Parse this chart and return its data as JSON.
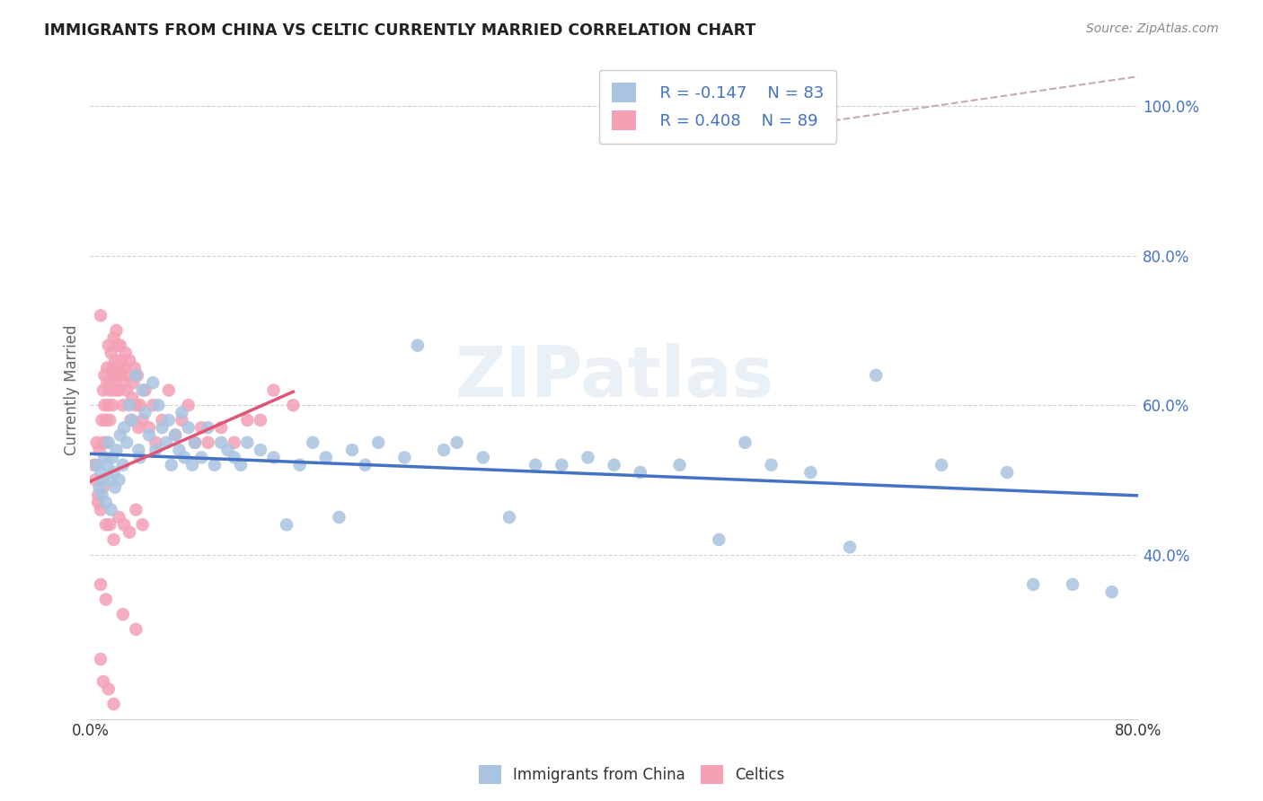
{
  "title": "IMMIGRANTS FROM CHINA VS CELTIC CURRENTLY MARRIED CORRELATION CHART",
  "source": "Source: ZipAtlas.com",
  "ylabel": "Currently Married",
  "legend_label1": "Immigrants from China",
  "legend_label2": "Celtics",
  "legend_r1": "R = -0.147",
  "legend_n1": "N = 83",
  "legend_r2": "R = 0.408",
  "legend_n2": "N = 89",
  "color_china": "#a8c4e0",
  "color_celtic": "#f4a0b5",
  "color_line_china": "#4472c4",
  "color_line_celtic": "#e05575",
  "color_diag": "#c8a8b8",
  "watermark": "ZIPatlas",
  "xlim": [
    0.0,
    0.8
  ],
  "ylim": [
    0.18,
    1.06
  ],
  "yticks": [
    0.4,
    0.6,
    0.8,
    1.0
  ],
  "ytick_labels": [
    "40.0%",
    "60.0%",
    "80.0%",
    "100.0%"
  ],
  "china_line_x": [
    0.0,
    0.8
  ],
  "china_line_y": [
    0.535,
    0.479
  ],
  "celtic_line_x": [
    0.0,
    0.155
  ],
  "celtic_line_y": [
    0.498,
    0.618
  ],
  "diag_line_x": [
    0.485,
    0.8
  ],
  "diag_line_y": [
    0.96,
    1.04
  ],
  "china_x": [
    0.005,
    0.007,
    0.008,
    0.009,
    0.01,
    0.011,
    0.012,
    0.013,
    0.014,
    0.015,
    0.016,
    0.017,
    0.018,
    0.019,
    0.02,
    0.022,
    0.023,
    0.025,
    0.026,
    0.028,
    0.03,
    0.032,
    0.035,
    0.037,
    0.038,
    0.04,
    0.042,
    0.045,
    0.048,
    0.05,
    0.052,
    0.055,
    0.058,
    0.06,
    0.062,
    0.065,
    0.068,
    0.07,
    0.072,
    0.075,
    0.078,
    0.08,
    0.085,
    0.09,
    0.095,
    0.1,
    0.105,
    0.11,
    0.115,
    0.12,
    0.13,
    0.14,
    0.15,
    0.16,
    0.17,
    0.18,
    0.19,
    0.2,
    0.21,
    0.22,
    0.24,
    0.25,
    0.27,
    0.28,
    0.3,
    0.32,
    0.34,
    0.36,
    0.38,
    0.4,
    0.42,
    0.45,
    0.48,
    0.5,
    0.52,
    0.55,
    0.58,
    0.6,
    0.65,
    0.7,
    0.72,
    0.75,
    0.78
  ],
  "china_y": [
    0.52,
    0.49,
    0.51,
    0.48,
    0.5,
    0.53,
    0.47,
    0.52,
    0.55,
    0.5,
    0.46,
    0.53,
    0.51,
    0.49,
    0.54,
    0.5,
    0.56,
    0.52,
    0.57,
    0.55,
    0.6,
    0.58,
    0.64,
    0.54,
    0.53,
    0.62,
    0.59,
    0.56,
    0.63,
    0.54,
    0.6,
    0.57,
    0.55,
    0.58,
    0.52,
    0.56,
    0.54,
    0.59,
    0.53,
    0.57,
    0.52,
    0.55,
    0.53,
    0.57,
    0.52,
    0.55,
    0.54,
    0.53,
    0.52,
    0.55,
    0.54,
    0.53,
    0.44,
    0.52,
    0.55,
    0.53,
    0.45,
    0.54,
    0.52,
    0.55,
    0.53,
    0.68,
    0.54,
    0.55,
    0.53,
    0.45,
    0.52,
    0.52,
    0.53,
    0.52,
    0.51,
    0.52,
    0.42,
    0.55,
    0.52,
    0.51,
    0.41,
    0.64,
    0.52,
    0.51,
    0.36,
    0.36,
    0.35
  ],
  "celtic_x": [
    0.003,
    0.004,
    0.005,
    0.006,
    0.007,
    0.008,
    0.009,
    0.01,
    0.01,
    0.011,
    0.011,
    0.012,
    0.012,
    0.013,
    0.013,
    0.014,
    0.014,
    0.015,
    0.015,
    0.016,
    0.016,
    0.017,
    0.017,
    0.018,
    0.018,
    0.019,
    0.019,
    0.02,
    0.02,
    0.021,
    0.021,
    0.022,
    0.022,
    0.023,
    0.023,
    0.024,
    0.025,
    0.025,
    0.026,
    0.027,
    0.028,
    0.029,
    0.03,
    0.031,
    0.032,
    0.033,
    0.034,
    0.035,
    0.036,
    0.037,
    0.038,
    0.04,
    0.042,
    0.045,
    0.048,
    0.05,
    0.055,
    0.06,
    0.065,
    0.07,
    0.075,
    0.08,
    0.085,
    0.09,
    0.1,
    0.11,
    0.12,
    0.13,
    0.14,
    0.155,
    0.006,
    0.008,
    0.01,
    0.012,
    0.015,
    0.018,
    0.022,
    0.026,
    0.03,
    0.035,
    0.04,
    0.008,
    0.012,
    0.025,
    0.035,
    0.008,
    0.01,
    0.014,
    0.018
  ],
  "celtic_y": [
    0.52,
    0.5,
    0.55,
    0.48,
    0.54,
    0.72,
    0.58,
    0.62,
    0.55,
    0.6,
    0.64,
    0.58,
    0.55,
    0.63,
    0.65,
    0.6,
    0.68,
    0.62,
    0.58,
    0.63,
    0.67,
    0.65,
    0.6,
    0.64,
    0.69,
    0.66,
    0.62,
    0.65,
    0.7,
    0.64,
    0.68,
    0.62,
    0.65,
    0.68,
    0.64,
    0.66,
    0.6,
    0.63,
    0.65,
    0.67,
    0.62,
    0.64,
    0.66,
    0.58,
    0.61,
    0.63,
    0.65,
    0.6,
    0.64,
    0.57,
    0.6,
    0.58,
    0.62,
    0.57,
    0.6,
    0.55,
    0.58,
    0.62,
    0.56,
    0.58,
    0.6,
    0.55,
    0.57,
    0.55,
    0.57,
    0.55,
    0.58,
    0.58,
    0.62,
    0.6,
    0.47,
    0.46,
    0.49,
    0.44,
    0.44,
    0.42,
    0.45,
    0.44,
    0.43,
    0.46,
    0.44,
    0.36,
    0.34,
    0.32,
    0.3,
    0.26,
    0.23,
    0.22,
    0.2
  ]
}
